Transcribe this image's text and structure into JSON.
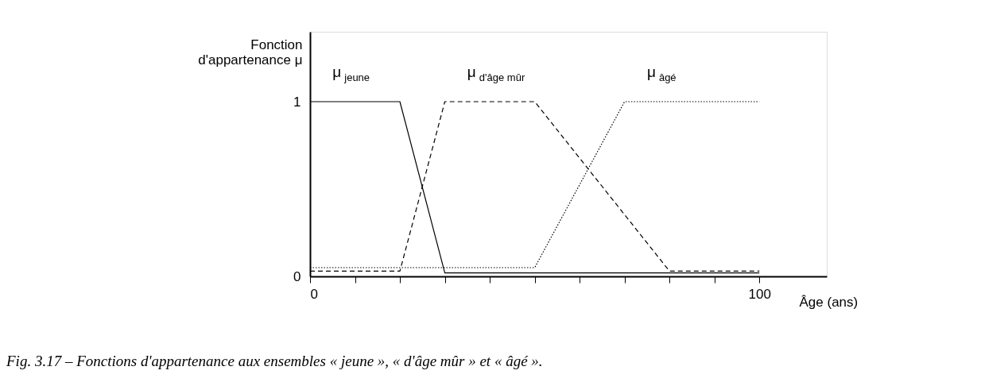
{
  "chart_data": {
    "type": "line",
    "series": [
      {
        "name": "μ$_{jeune}$",
        "color": "#000000",
        "line_style": "solid",
        "x": [
          0,
          20,
          30,
          100
        ],
        "values": [
          1,
          1,
          0.02,
          0.02
        ]
      },
      {
        "name": "μ$_{d'âge mûr}$",
        "color": "#000000",
        "line_style": "dashed",
        "x": [
          0,
          20,
          30,
          50,
          80,
          100
        ],
        "values": [
          0.03,
          0.03,
          1,
          1,
          0.03,
          0.03
        ]
      },
      {
        "name": "μ$_{âgé}$",
        "color": "#000000",
        "line_style": "dotted",
        "x": [
          0,
          50,
          70,
          100
        ],
        "values": [
          0.05,
          0.05,
          1,
          1
        ]
      }
    ],
    "xlabel": "Âge (ans)",
    "ylabel": "Fonction\nd'appartenance  μ",
    "xlim": [
      0,
      115
    ],
    "ylim": [
      0,
      1.4
    ],
    "xticks": [
      0,
      {
        "value": 10,
        "label": null
      },
      {
        "value": 20,
        "label": null
      },
      {
        "value": 30,
        "label": null
      },
      {
        "value": 40,
        "label": null
      },
      {
        "value": 50,
        "label": null
      },
      {
        "value": 60,
        "label": null
      },
      {
        "value": 70,
        "label": null
      },
      {
        "value": 80,
        "label": null
      },
      {
        "value": 90,
        "label": null
      },
      100
    ],
    "yticks": [
      0,
      1
    ],
    "grid": false,
    "marker": "none",
    "annotations": [
      "Fig. 3.17 – Fonctions d'appartenance aux ensembles « jeune », « d'âge mûr » et « âgé »."
    ]
  }
}
